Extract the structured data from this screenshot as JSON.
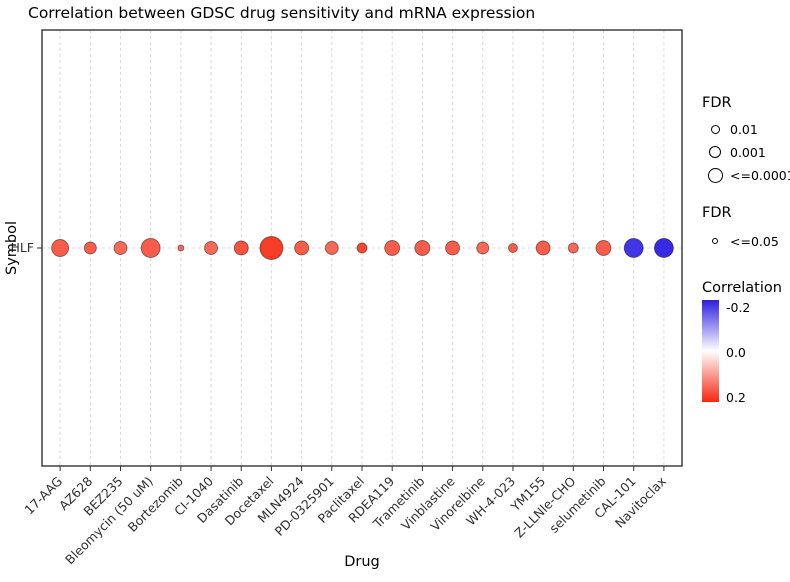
{
  "chart_data": {
    "type": "bubble",
    "title": "Correlation between GDSC drug sensitivity and mRNA expression",
    "xlabel": "Drug",
    "ylabel": "Symbol",
    "rows": [
      "HLF"
    ],
    "categories": [
      "17-AAG",
      "AZ628",
      "BEZ235",
      "Bleomycin (50 uM)",
      "Bortezomib",
      "CI-1040",
      "Dasatinib",
      "Docetaxel",
      "MLN4924",
      "PD-0325901",
      "Paclitaxel",
      "RDEA119",
      "Trametinib",
      "Vinblastine",
      "Vinorelbine",
      "WH-4-023",
      "YM155",
      "Z-LLNle-CHO",
      "selumetinib",
      "CAL-101",
      "Navitoclax"
    ],
    "series": [
      {
        "name": "HLF",
        "correlation": [
          0.15,
          0.15,
          0.14,
          0.15,
          0.14,
          0.14,
          0.16,
          0.18,
          0.15,
          0.14,
          0.17,
          0.15,
          0.15,
          0.15,
          0.14,
          0.15,
          0.15,
          0.14,
          0.15,
          -0.18,
          -0.19
        ],
        "radius_px": [
          8.5,
          6,
          6.5,
          9.5,
          3,
          6.5,
          7,
          11.5,
          7,
          6.5,
          5,
          7.5,
          7.5,
          7,
          6,
          4.5,
          7,
          5,
          7.5,
          9.5,
          9.5
        ]
      }
    ],
    "grid": "dashed-vertical-and-row",
    "legend_position": "right",
    "color_scale": {
      "title": "Correlation",
      "min": -0.2,
      "mid": 0.0,
      "max": 0.2,
      "min_color": "#2d1fe0",
      "mid_color": "#ffffff",
      "max_color": "#f5270f",
      "tick_labels": [
        "-0.2",
        "0.0",
        "0.2"
      ]
    },
    "size_legends": [
      {
        "title": "FDR",
        "items": [
          {
            "label": "0.01",
            "r": 4.5
          },
          {
            "label": "0.001",
            "r": 6
          },
          {
            "label": "<=0.0001",
            "r": 7.5
          }
        ]
      },
      {
        "title": "FDR",
        "items": [
          {
            "label": "<=0.05",
            "r": 3
          }
        ]
      }
    ]
  }
}
